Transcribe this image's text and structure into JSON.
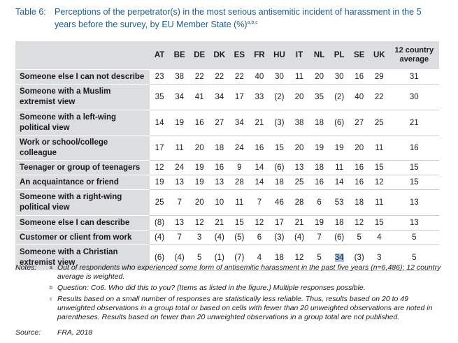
{
  "header": {
    "label": "Table 6:",
    "title": "Perceptions of the perpetrator(s) in the most serious antisemitic incident of harassment in the 5 years before the survey, by EU Member State (%)",
    "superscript": "a,b,c"
  },
  "table": {
    "columns": [
      "AT",
      "BE",
      "DE",
      "DK",
      "ES",
      "FR",
      "HU",
      "IT",
      "NL",
      "PL",
      "SE",
      "UK",
      "12 country average"
    ],
    "rows": [
      {
        "label": "Someone else I can not describe",
        "cells": [
          "23",
          "38",
          "22",
          "22",
          "22",
          "40",
          "30",
          "11",
          "20",
          "30",
          "16",
          "29",
          "31"
        ]
      },
      {
        "label": "Someone with a Muslim extremist view",
        "cells": [
          "35",
          "34",
          "41",
          "34",
          "17",
          "33",
          "(2)",
          "20",
          "35",
          "(2)",
          "40",
          "22",
          "30"
        ]
      },
      {
        "label": "Someone with a left-wing political view",
        "cells": [
          "14",
          "19",
          "16",
          "27",
          "34",
          "21",
          "(3)",
          "38",
          "18",
          "(6)",
          "27",
          "25",
          "21"
        ]
      },
      {
        "label": "Work or school/college colleague",
        "cells": [
          "17",
          "11",
          "20",
          "18",
          "24",
          "16",
          "15",
          "20",
          "19",
          "19",
          "20",
          "11",
          "16"
        ]
      },
      {
        "label": "Teenager or group of teenagers",
        "cells": [
          "12",
          "24",
          "19",
          "16",
          "9",
          "14",
          "(6)",
          "13",
          "18",
          "11",
          "16",
          "15",
          "15"
        ]
      },
      {
        "label": "An acquaintance or friend",
        "cells": [
          "19",
          "13",
          "19",
          "13",
          "28",
          "14",
          "18",
          "25",
          "16",
          "14",
          "16",
          "12",
          "15"
        ]
      },
      {
        "label": "Someone with a right-wing political view",
        "cells": [
          "25",
          "7",
          "20",
          "10",
          "11",
          "7",
          "46",
          "28",
          "6",
          "53",
          "18",
          "11",
          "13"
        ]
      },
      {
        "label": "Someone else I can describe",
        "cells": [
          "(8)",
          "13",
          "12",
          "21",
          "15",
          "12",
          "17",
          "21",
          "19",
          "18",
          "12",
          "15",
          "13"
        ]
      },
      {
        "label": "Customer or client from work",
        "cells": [
          "(4)",
          "7",
          "3",
          "(4)",
          "(5)",
          "6",
          "(3)",
          "(4)",
          "7",
          "(6)",
          "5",
          "4",
          "5"
        ]
      },
      {
        "label": "Someone with a Christian extremist view",
        "cells": [
          "(6)",
          "(4)",
          "5",
          "(1)",
          "(7)",
          "4",
          "18",
          "12",
          "5",
          "34",
          "(3)",
          "3",
          "5"
        ]
      }
    ]
  },
  "notes": {
    "label": "Notes:",
    "items": [
      {
        "marker": "a",
        "text": "Out of respondents who experienced some form of antisemitic harassment in the past five years (n=6,486); 12 country average is weighted."
      },
      {
        "marker": "b",
        "text": "Question: Co6. Who did this to you? (Items as listed in the figure.) Multiple responses possible."
      },
      {
        "marker": "c",
        "text": "Results based on a small number of responses are statistically less reliable. Thus, results based on 20 to 49 unweighted observations in a group total or based on cells with fewer than 20 unweighted observations are noted in parentheses. Results based on fewer than 20 unweighted observations in a group total are not published."
      }
    ]
  },
  "source": {
    "label": "Source:",
    "text": "FRA, 2018"
  }
}
